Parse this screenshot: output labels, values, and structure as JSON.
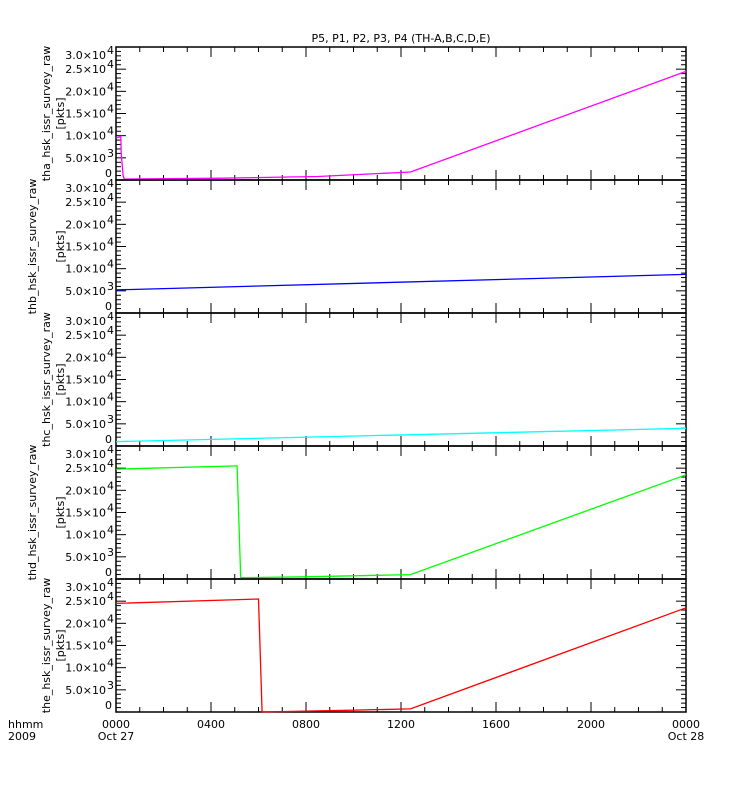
{
  "chart_data": {
    "type": "line",
    "title": "P5, P1, P2, P3, P4 (TH-A,B,C,D,E)",
    "x_unit": "hours since 2009 Oct 27 0000",
    "xlim": [
      0,
      24
    ],
    "x_ticks": [
      {
        "value": 0,
        "label": "0000",
        "sublabel": "Oct 27"
      },
      {
        "value": 4,
        "label": "0400",
        "sublabel": ""
      },
      {
        "value": 8,
        "label": "0800",
        "sublabel": ""
      },
      {
        "value": 12,
        "label": "1200",
        "sublabel": ""
      },
      {
        "value": 16,
        "label": "1600",
        "sublabel": ""
      },
      {
        "value": 20,
        "label": "2000",
        "sublabel": ""
      },
      {
        "value": 24,
        "label": "0000",
        "sublabel": "Oct 28"
      }
    ],
    "x_axis_label": "hhmm",
    "x_axis_sublabel": "2009",
    "ylim": [
      0,
      30000
    ],
    "y_ticks": [
      {
        "value": 0,
        "label": "0"
      },
      {
        "value": 5000,
        "label": "5.0×10",
        "exp": "3"
      },
      {
        "value": 10000,
        "label": "1.0×10",
        "exp": "4"
      },
      {
        "value": 15000,
        "label": "1.5×10",
        "exp": "4"
      },
      {
        "value": 20000,
        "label": "2.0×10",
        "exp": "4"
      },
      {
        "value": 25000,
        "label": "2.5×10",
        "exp": "4"
      },
      {
        "value": 30000,
        "label": "3.0×10",
        "exp": "4"
      }
    ],
    "y_unit": "[pkts]",
    "grid": false,
    "series": [
      {
        "name": "tha_hsk_issr_survey_raw",
        "color": "#ff00ff",
        "x": [
          0,
          0.2,
          0.22,
          0.3,
          0.35,
          4.5,
          8.5,
          12.4,
          24
        ],
        "y": [
          9500,
          9800,
          6000,
          1000,
          200,
          400,
          800,
          1800,
          24500
        ]
      },
      {
        "name": "thb_hsk_issr_survey_raw",
        "color": "#0000ff",
        "x": [
          0,
          24
        ],
        "y": [
          5200,
          8700
        ]
      },
      {
        "name": "thc_hsk_issr_survey_raw",
        "color": "#00ffff",
        "x": [
          0,
          24
        ],
        "y": [
          1000,
          4000
        ]
      },
      {
        "name": "thd_hsk_issr_survey_raw",
        "color": "#00ff00",
        "x": [
          0,
          5.1,
          5.25,
          8,
          12.4,
          24
        ],
        "y": [
          24800,
          25500,
          300,
          500,
          1000,
          23500
        ]
      },
      {
        "name": "the_hsk_issr_survey_raw",
        "color": "#ff0000",
        "x": [
          0,
          6.0,
          6.15,
          9,
          12.4,
          24
        ],
        "y": [
          24500,
          25500,
          0,
          300,
          700,
          23500
        ]
      }
    ]
  }
}
